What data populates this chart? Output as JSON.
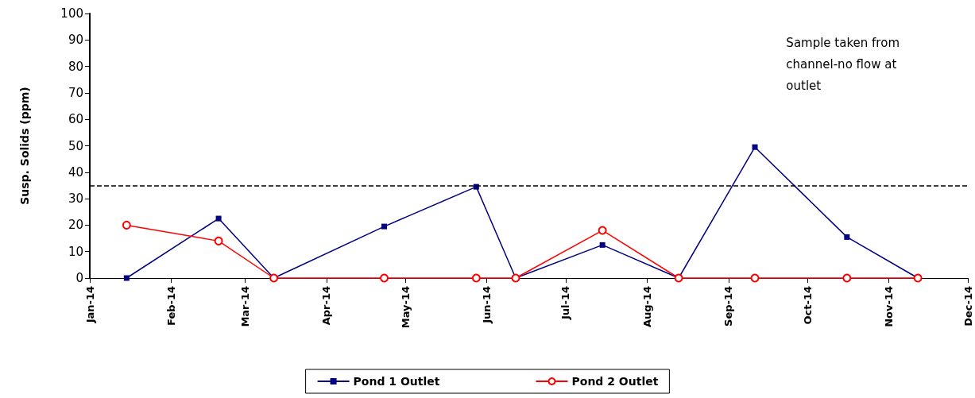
{
  "chart_data": {
    "type": "line",
    "ylabel": "Susp. Solids (ppm)",
    "annotations": [
      "Sample taken from\nchannel-no flow at\noutlet"
    ],
    "xlim": [
      "2014-01-01",
      "2014-12-01"
    ],
    "xticks": [
      {
        "value": "2014-01-01",
        "label": "Jan-14"
      },
      {
        "value": "2014-02-01",
        "label": "Feb-14"
      },
      {
        "value": "2014-03-01",
        "label": "Mar-14"
      },
      {
        "value": "2014-04-01",
        "label": "Apr-14"
      },
      {
        "value": "2014-05-01",
        "label": "May-14"
      },
      {
        "value": "2014-06-01",
        "label": "Jun-14"
      },
      {
        "value": "2014-07-01",
        "label": "Jul-14"
      },
      {
        "value": "2014-08-01",
        "label": "Aug-14"
      },
      {
        "value": "2014-09-01",
        "label": "Sep-14"
      },
      {
        "value": "2014-10-01",
        "label": "Oct-14"
      },
      {
        "value": "2014-11-01",
        "label": "Nov-14"
      },
      {
        "value": "2014-12-01",
        "label": "Dec-14"
      }
    ],
    "ylim": [
      0,
      100
    ],
    "yticks": [
      0,
      10,
      20,
      30,
      40,
      50,
      60,
      70,
      80,
      90,
      100
    ],
    "x": [
      "2014-01-15",
      "2014-02-19",
      "2014-03-12",
      "2014-04-23",
      "2014-05-28",
      "2014-06-12",
      "2014-07-15",
      "2014-08-13",
      "2014-09-11",
      "2014-10-16",
      "2014-11-12"
    ],
    "series": [
      {
        "name": "Pond 1 Outlet",
        "color": "#000080",
        "marker": "square",
        "values": [
          0,
          22.5,
          0,
          19.5,
          34.5,
          0,
          12.5,
          0,
          49.5,
          15.5,
          0
        ]
      },
      {
        "name": "Pond 2 Outlet",
        "color": "#ff0000",
        "marker": "circle",
        "values": [
          20,
          14,
          0,
          0,
          0,
          0,
          18,
          0,
          0,
          0,
          0
        ]
      }
    ],
    "ref_lines": [
      {
        "axis": "y",
        "value": 35,
        "color": "#000000",
        "line_style": "dashed"
      }
    ],
    "grid": false,
    "legend": "bottom",
    "line_style": "solid"
  }
}
